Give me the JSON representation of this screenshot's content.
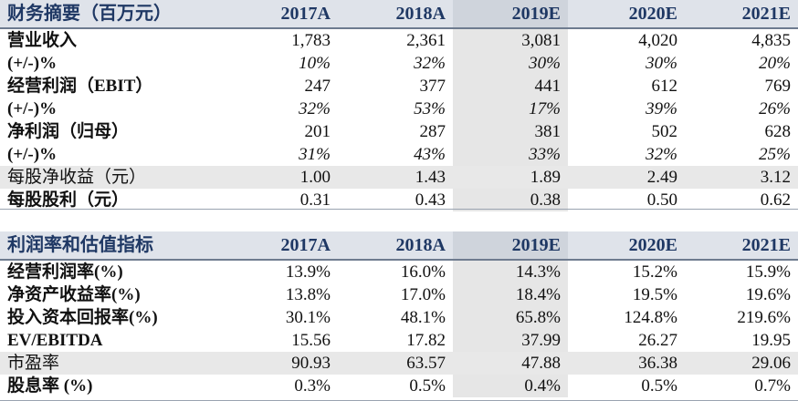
{
  "table1": {
    "title": "财务摘要（百万元）",
    "years": [
      "2017A",
      "2018A",
      "2019E",
      "2020E",
      "2021E"
    ],
    "rows": [
      {
        "label": "营业收入",
        "values": [
          "1,783",
          "2,361",
          "3,081",
          "4,020",
          "4,835"
        ],
        "italic": false,
        "gray": false,
        "bold": true
      },
      {
        "label": "(+/-)%",
        "values": [
          "10%",
          "32%",
          "30%",
          "30%",
          "20%"
        ],
        "italic": true,
        "gray": false,
        "bold": true
      },
      {
        "label": "经营利润（EBIT）",
        "values": [
          "247",
          "377",
          "441",
          "612",
          "769"
        ],
        "italic": false,
        "gray": false,
        "bold": true
      },
      {
        "label": "(+/-)%",
        "values": [
          "32%",
          "53%",
          "17%",
          "39%",
          "26%"
        ],
        "italic": true,
        "gray": false,
        "bold": true
      },
      {
        "label": "净利润（归母）",
        "values": [
          "201",
          "287",
          "381",
          "502",
          "628"
        ],
        "italic": false,
        "gray": false,
        "bold": true
      },
      {
        "label": "(+/-)%",
        "values": [
          "31%",
          "43%",
          "33%",
          "32%",
          "25%"
        ],
        "italic": true,
        "gray": false,
        "bold": true
      },
      {
        "label": "每股净收益（元）",
        "values": [
          "1.00",
          "1.43",
          "1.89",
          "2.49",
          "3.12"
        ],
        "italic": false,
        "gray": true,
        "bold": false
      },
      {
        "label": "每股股利（元）",
        "values": [
          "0.31",
          "0.43",
          "0.38",
          "0.50",
          "0.62"
        ],
        "italic": false,
        "gray": false,
        "bold": true
      }
    ]
  },
  "table2": {
    "title": "利润率和估值指标",
    "years": [
      "2017A",
      "2018A",
      "2019E",
      "2020E",
      "2021E"
    ],
    "rows": [
      {
        "label": "经营利润率(%)",
        "values": [
          "13.9%",
          "16.0%",
          "14.3%",
          "15.2%",
          "15.9%"
        ],
        "gray": false,
        "bold": true
      },
      {
        "label": "净资产收益率(%)",
        "values": [
          "13.8%",
          "17.0%",
          "18.4%",
          "19.5%",
          "19.6%"
        ],
        "gray": false,
        "bold": true
      },
      {
        "label": "投入资本回报率(%)",
        "values": [
          "30.1%",
          "48.1%",
          "65.8%",
          "124.8%",
          "219.6%"
        ],
        "gray": false,
        "bold": true
      },
      {
        "label": "EV/EBITDA",
        "values": [
          "15.56",
          "17.82",
          "37.99",
          "26.27",
          "19.95"
        ],
        "gray": false,
        "bold": true
      },
      {
        "label": "市盈率",
        "values": [
          "90.93",
          "63.57",
          "47.88",
          "36.38",
          "29.06"
        ],
        "gray": true,
        "bold": false
      },
      {
        "label": "股息率 (%)",
        "values": [
          "0.3%",
          "0.5%",
          "0.4%",
          "0.5%",
          "0.7%"
        ],
        "gray": false,
        "bold": true
      }
    ]
  }
}
